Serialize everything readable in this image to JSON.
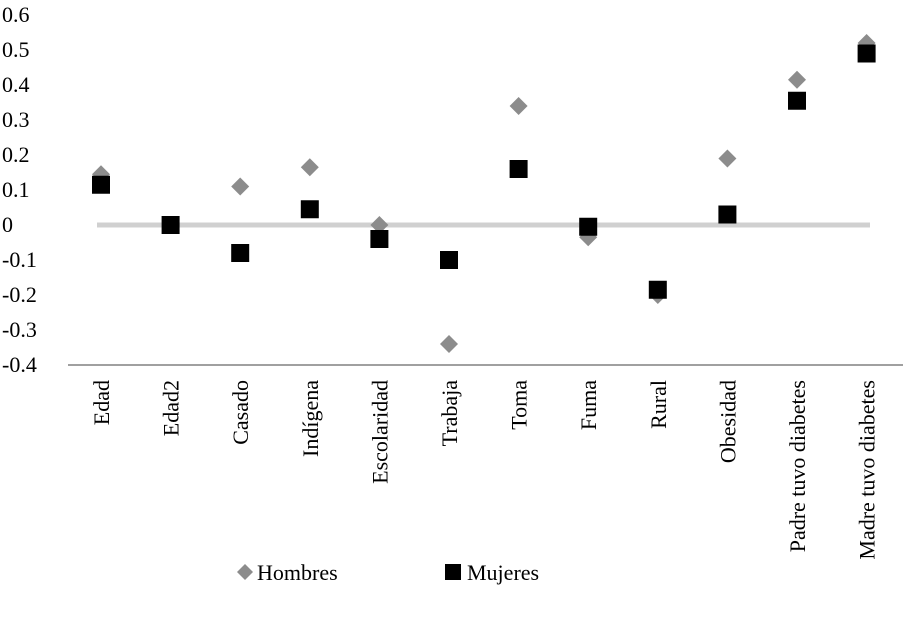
{
  "chart_data": {
    "type": "scatter",
    "categories": [
      "Edad",
      "Edad2",
      "Casado",
      "Indígena",
      "Escolaridad",
      "Trabaja",
      "Toma",
      "Fuma",
      "Rural",
      "Obesidad",
      "Padre tuvo diabetes",
      "Madre tuvo diabetes"
    ],
    "series": [
      {
        "name": "Hombres",
        "marker": "diamond",
        "color": "#8c8c8c",
        "values": [
          0.145,
          0.0,
          0.11,
          0.165,
          0.0,
          -0.34,
          0.34,
          -0.035,
          -0.2,
          0.19,
          0.415,
          0.52
        ]
      },
      {
        "name": "Mujeres",
        "marker": "square",
        "color": "#000000",
        "values": [
          0.115,
          0.0,
          -0.08,
          0.045,
          -0.04,
          -0.1,
          0.16,
          -0.005,
          -0.185,
          0.03,
          0.355,
          0.49
        ]
      }
    ],
    "y_ticks": [
      "0.6",
      "0.5",
      "0.4",
      "0.3",
      "0.2",
      "0.1",
      "0",
      "-0.1",
      "-0.2",
      "-0.3",
      "-0.4"
    ],
    "ylim": [
      -0.4,
      0.6
    ],
    "zero_line_color": "#d0d0d0",
    "axis_color": "#808080",
    "grid": false,
    "legend_position": "bottom-left",
    "title": "",
    "xlabel": "",
    "ylabel": ""
  }
}
